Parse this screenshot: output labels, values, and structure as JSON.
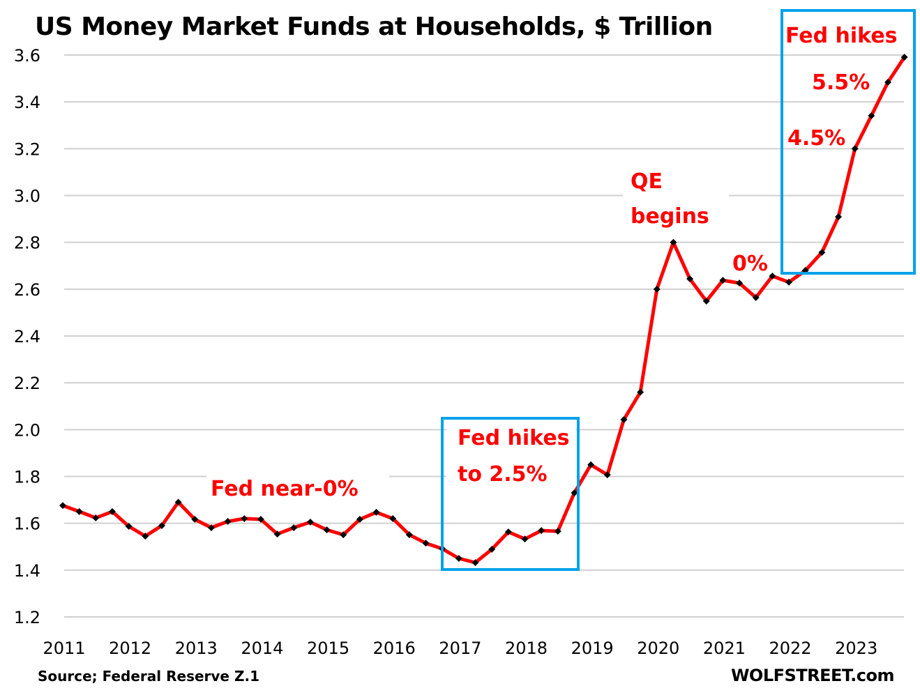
{
  "chart_data": {
    "type": "line",
    "title": "US Money Market Funds at Households, $ Trillion",
    "xlabel": "",
    "ylabel": "",
    "ylim": [
      1.2,
      3.6
    ],
    "yticks": [
      "3.6",
      "3.4",
      "3.2",
      "3.0",
      "2.8",
      "2.6",
      "2.4",
      "2.2",
      "2.0",
      "1.8",
      "1.6",
      "1.4",
      "1.2"
    ],
    "ytick_values": [
      3.6,
      3.4,
      3.2,
      3.0,
      2.8,
      2.6,
      2.4,
      2.2,
      2.0,
      1.8,
      1.6,
      1.4,
      1.2
    ],
    "xticks": [
      "2011",
      "2012",
      "2013",
      "2014",
      "2015",
      "2016",
      "2017",
      "2018",
      "2019",
      "2020",
      "2021",
      "2022",
      "2023"
    ],
    "grid": true,
    "legend": "none",
    "series": [
      {
        "name": "Money Market Funds at Households",
        "color": "#ff0000",
        "marker_color": "#000000",
        "x": [
          "2011Q1",
          "2011Q2",
          "2011Q3",
          "2011Q4",
          "2012Q1",
          "2012Q2",
          "2012Q3",
          "2012Q4",
          "2013Q1",
          "2013Q2",
          "2013Q3",
          "2013Q4",
          "2014Q1",
          "2014Q2",
          "2014Q3",
          "2014Q4",
          "2015Q1",
          "2015Q2",
          "2015Q3",
          "2015Q4",
          "2016Q1",
          "2016Q2",
          "2016Q3",
          "2016Q4",
          "2017Q1",
          "2017Q2",
          "2017Q3",
          "2017Q4",
          "2018Q1",
          "2018Q2",
          "2018Q3",
          "2018Q4",
          "2019Q1",
          "2019Q2",
          "2019Q3",
          "2019Q4",
          "2020Q1",
          "2020Q2",
          "2020Q3",
          "2020Q4",
          "2021Q1",
          "2021Q2",
          "2021Q3",
          "2021Q4",
          "2022Q1",
          "2022Q2",
          "2022Q3",
          "2022Q4",
          "2023Q1",
          "2023Q2",
          "2023Q3",
          "2023Q4"
        ],
        "values": [
          1.676,
          1.65,
          1.623,
          1.65,
          1.587,
          1.545,
          1.59,
          1.69,
          1.617,
          1.581,
          1.608,
          1.62,
          1.617,
          1.554,
          1.581,
          1.605,
          1.572,
          1.551,
          1.617,
          1.647,
          1.62,
          1.551,
          1.515,
          1.491,
          1.45,
          1.432,
          1.489,
          1.563,
          1.533,
          1.569,
          1.566,
          1.73,
          1.85,
          1.807,
          2.043,
          2.16,
          2.6,
          2.8,
          2.644,
          2.549,
          2.638,
          2.626,
          2.564,
          2.656,
          2.63,
          2.68,
          2.757,
          2.909,
          3.2,
          3.341,
          3.484,
          3.591
        ]
      }
    ],
    "annotations": [
      {
        "id": "fed-near-zero",
        "lines": [
          "Fed near-0%"
        ],
        "color": "#ff0000"
      },
      {
        "id": "fed-hikes-2018",
        "lines": [
          "Fed hikes",
          "to 2.5%"
        ],
        "color": "#ff0000"
      },
      {
        "id": "qe-begins",
        "lines": [
          "QE",
          "begins"
        ],
        "color": "#ff0000"
      },
      {
        "id": "zero-pct",
        "lines": [
          "0%"
        ],
        "color": "#ff0000"
      },
      {
        "id": "fed-hikes-2023",
        "lines": [
          "Fed hikes"
        ],
        "color": "#ff0000"
      },
      {
        "id": "rate-5-5",
        "lines": [
          "5.5%"
        ],
        "color": "#ff0000"
      },
      {
        "id": "rate-4-5",
        "lines": [
          "4.5%"
        ],
        "color": "#ff0000"
      }
    ],
    "highlight_boxes": [
      {
        "id": "box-2017-2018",
        "from": "2017Q1",
        "to": "2018Q3",
        "color": "#00a2e8"
      },
      {
        "id": "box-2022-2023",
        "from": "2022Q2",
        "to": "2023Q4",
        "color": "#00a2e8"
      }
    ],
    "source": "Source; Federal Reserve Z.1",
    "brand": "WOLFSTREET.com"
  }
}
